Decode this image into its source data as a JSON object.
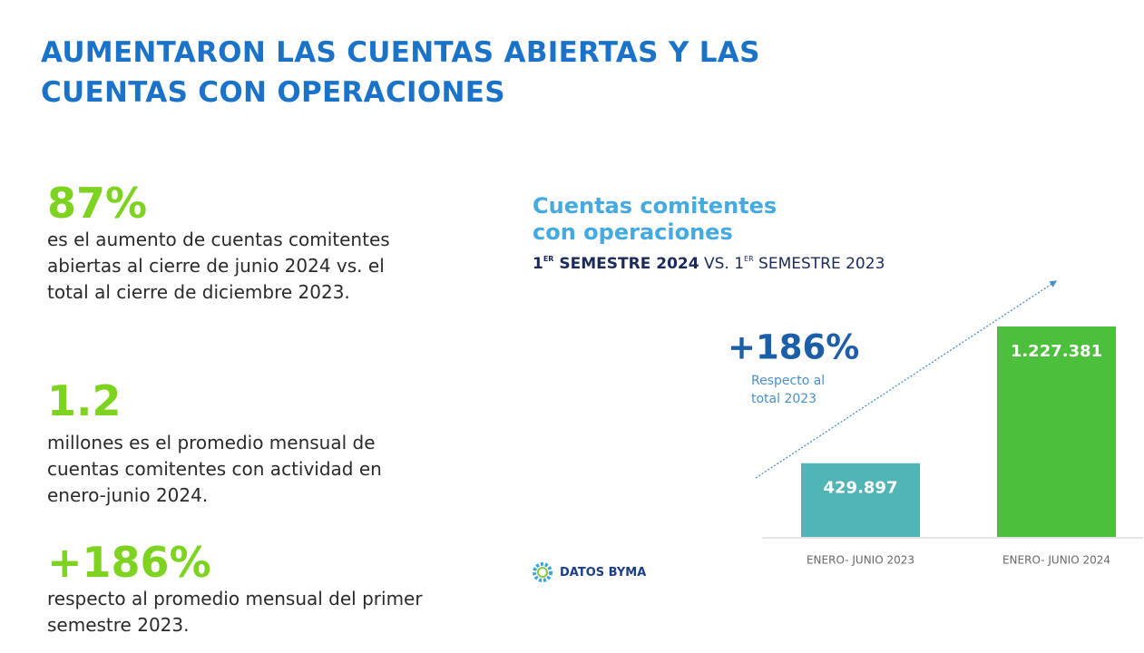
{
  "header": {
    "title": "AUMENTARON LAS CUENTAS ABIERTAS Y LAS CUENTAS CON OPERACIONES"
  },
  "stats": [
    {
      "value": "87%",
      "text": "es el aumento de cuentas comitentes abiertas al cierre de junio 2024 vs. el total al cierre de diciembre 2023."
    },
    {
      "value": "1.2",
      "text": "millones es el promedio mensual de cuentas comitentes con actividad en enero-junio 2024."
    },
    {
      "value": "+186%",
      "text": "respecto al promedio mensual del primer semestre 2023."
    }
  ],
  "chart_data": {
    "type": "bar",
    "title": "Cuentas comitentes con operaciones",
    "subtitle_parts": [
      "1",
      "ER",
      " SEMESTRE 2024",
      " VS. 1",
      "ER",
      " SEMESTRE 2023"
    ],
    "categories": [
      "ENERO- JUNIO 2023",
      "ENERO- JUNIO 2024"
    ],
    "values": [
      429897,
      1227381
    ],
    "value_labels": [
      "429.897",
      "1.227.381"
    ],
    "colors": [
      "#52b5b5",
      "#4cbf3c"
    ],
    "annotation": {
      "value": "+186%",
      "text": "Respecto al total 2023"
    }
  },
  "logo": {
    "text": "DATOS BYMA"
  }
}
